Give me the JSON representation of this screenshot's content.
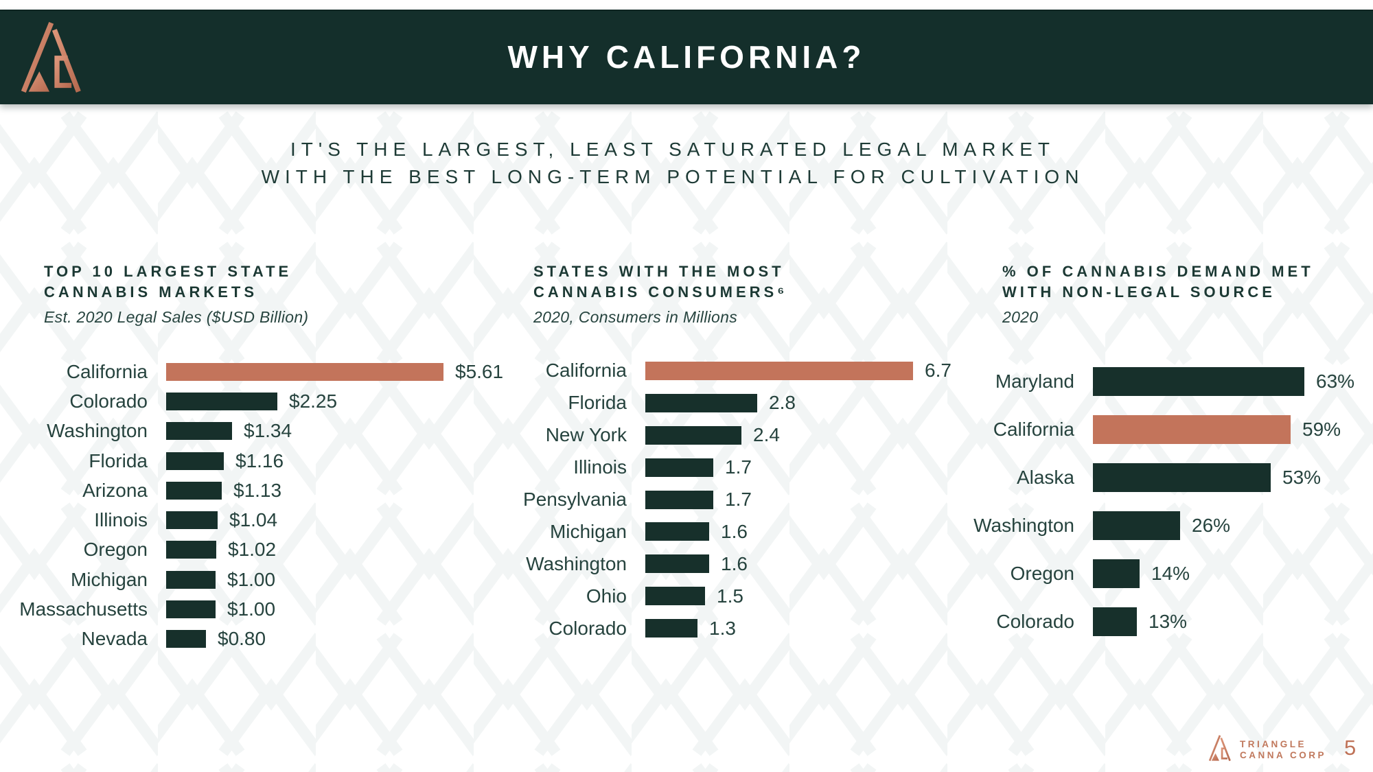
{
  "slide": {
    "header": {
      "title": "WHY CALIFORNIA?"
    },
    "subtitle": {
      "line1": "IT'S THE LARGEST, LEAST SATURATED LEGAL MARKET",
      "line2": "WITH THE BEST LONG-TERM POTENTIAL FOR CULTIVATION"
    },
    "footer": {
      "brand_line1": "TRIANGLE",
      "brand_line2": "CANNA CORP",
      "page_number": "5"
    }
  },
  "colors": {
    "header_band": "#142f2b",
    "bar_dark": "#17302b",
    "bar_highlight": "#c3745b",
    "text_green": "#26433e",
    "copper": "#c0785c",
    "watermark": "#f2f5f5"
  },
  "chart_data": [
    {
      "type": "bar",
      "orientation": "horizontal",
      "title_lines": [
        "TOP 10 LARGEST STATE",
        "CANNABIS MARKETS"
      ],
      "subtitle": "Est. 2020 Legal Sales ($USD Billion)",
      "categories": [
        "California",
        "Colorado",
        "Washington",
        "Florida",
        "Arizona",
        "Illinois",
        "Oregon",
        "Michigan",
        "Massachusetts",
        "Nevada"
      ],
      "values": [
        5.61,
        2.25,
        1.34,
        1.16,
        1.13,
        1.04,
        1.02,
        1.0,
        1.0,
        0.8
      ],
      "value_labels": [
        "$5.61",
        "$2.25",
        "$1.34",
        "$1.16",
        "$1.13",
        "$1.04",
        "$1.02",
        "$1.00",
        "$1.00",
        "$0.80"
      ],
      "highlight_category": "California",
      "xlim": [
        0,
        5.61
      ],
      "grid": false,
      "legend": false
    },
    {
      "type": "bar",
      "orientation": "horizontal",
      "title_lines": [
        "STATES WITH THE MOST",
        "CANNABIS CONSUMERS⁶"
      ],
      "subtitle": "2020, Consumers in Millions",
      "categories": [
        "California",
        "Florida",
        "New York",
        "Illinois",
        "Pensylvania",
        "Michigan",
        "Washington",
        "Ohio",
        "Colorado"
      ],
      "values": [
        6.7,
        2.8,
        2.4,
        1.7,
        1.7,
        1.6,
        1.6,
        1.5,
        1.3
      ],
      "value_labels": [
        "6.7",
        "2.8",
        "2.4",
        "1.7",
        "1.7",
        "1.6",
        "1.6",
        "1.5",
        "1.3"
      ],
      "highlight_category": "California",
      "xlim": [
        0,
        6.7
      ],
      "grid": false,
      "legend": false
    },
    {
      "type": "bar",
      "orientation": "horizontal",
      "title_lines": [
        "% OF CANNABIS DEMAND MET",
        "WITH NON-LEGAL SOURCE"
      ],
      "subtitle": "2020",
      "categories": [
        "Maryland",
        "California",
        "Alaska",
        "Washington",
        "Oregon",
        "Colorado"
      ],
      "values": [
        63,
        59,
        53,
        26,
        14,
        13
      ],
      "value_labels": [
        "63%",
        "59%",
        "53%",
        "26%",
        "14%",
        "13%"
      ],
      "highlight_category": "California",
      "xlim": [
        0,
        63
      ],
      "grid": false,
      "legend": false
    }
  ]
}
